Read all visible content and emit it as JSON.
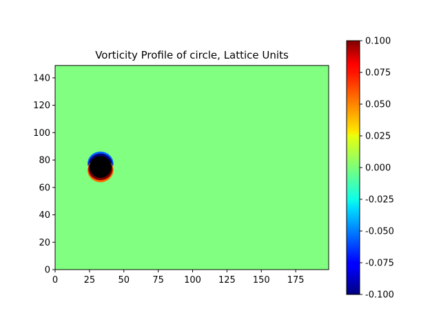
{
  "chart_data": {
    "type": "heatmap",
    "title": "Vorticity Profile of circle, Lattice Units",
    "xlabel": "",
    "ylabel": "",
    "xlim": [
      0,
      199
    ],
    "ylim": [
      0,
      149
    ],
    "x_ticks": [
      0,
      25,
      50,
      75,
      100,
      125,
      150,
      175
    ],
    "y_ticks": [
      0,
      20,
      40,
      60,
      80,
      100,
      120,
      140
    ],
    "colormap": "jet",
    "color_range": [
      -0.1,
      0.1
    ],
    "colorbar_ticks": [
      "-0.100",
      "-0.075",
      "-0.050",
      "-0.025",
      "0.000",
      "0.025",
      "0.050",
      "0.075",
      "0.100"
    ],
    "background_value": 0.0,
    "obstacle": {
      "shape": "circle",
      "center": [
        33,
        75
      ],
      "radius": 8,
      "fill": "#000000"
    },
    "features": [
      {
        "name": "upper shear layer",
        "value": -0.1,
        "side": "top"
      },
      {
        "name": "lower shear layer",
        "value": 0.1,
        "side": "bottom"
      }
    ],
    "grid": false
  }
}
